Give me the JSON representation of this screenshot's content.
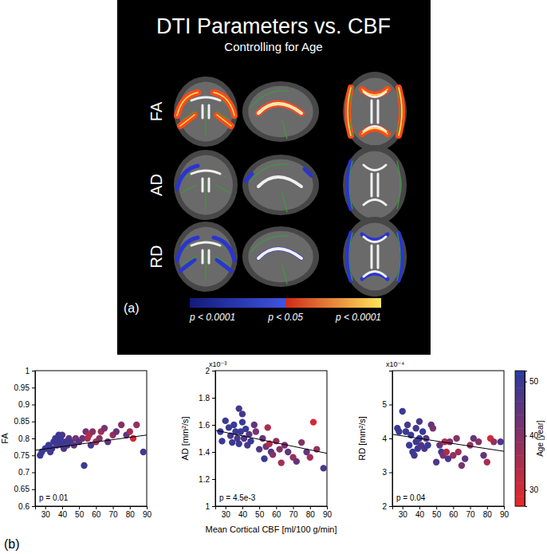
{
  "panel_a": {
    "title": "DTI Parameters vs. CBF",
    "subtitle": "Controlling for Age",
    "rows": [
      {
        "label": "FA",
        "color": "#ff4a1a"
      },
      {
        "label": "AD",
        "color": "#2a35d0"
      },
      {
        "label": "RD",
        "color": "#2a35d0"
      }
    ],
    "colorbar": {
      "labels": [
        "p < 0.0001",
        "p < 0.05",
        "p < 0.0001"
      ],
      "colors": [
        "#151a7a",
        "#3d55e0",
        "#d02a1a",
        "#ffe45a"
      ]
    },
    "label": "(a)"
  },
  "panel_b": {
    "label": "(b)"
  },
  "chart_data": [
    {
      "type": "scatter",
      "ylabel": "FA",
      "annotation": "p = 0.01",
      "x": [
        27,
        28,
        30,
        32,
        33,
        34,
        35,
        36,
        37,
        38,
        38,
        39,
        40,
        40,
        41,
        42,
        43,
        44,
        45,
        47,
        48,
        50,
        52,
        53,
        54,
        55,
        56,
        57,
        58,
        60,
        62,
        63,
        65,
        67,
        70,
        72,
        75,
        78,
        80,
        82,
        84,
        88
      ],
      "values": [
        0.75,
        0.76,
        0.77,
        0.78,
        0.76,
        0.77,
        0.79,
        0.8,
        0.78,
        0.81,
        0.79,
        0.8,
        0.81,
        0.78,
        0.77,
        0.79,
        0.78,
        0.8,
        0.79,
        0.78,
        0.8,
        0.79,
        0.8,
        0.72,
        0.82,
        0.8,
        0.81,
        0.78,
        0.82,
        0.79,
        0.8,
        0.82,
        0.83,
        0.79,
        0.81,
        0.82,
        0.84,
        0.81,
        0.82,
        0.8,
        0.84,
        0.76
      ],
      "age": [
        50,
        50,
        50,
        50,
        48,
        50,
        50,
        50,
        48,
        50,
        49,
        50,
        48,
        50,
        47,
        50,
        48,
        46,
        50,
        45,
        42,
        47,
        44,
        50,
        42,
        35,
        34,
        48,
        40,
        38,
        40,
        36,
        42,
        45,
        38,
        44,
        40,
        45,
        36,
        30,
        38,
        48
      ],
      "fit": {
        "x": [
          24,
          90
        ],
        "y": [
          0.765,
          0.81
        ]
      },
      "xlim": [
        24,
        90
      ],
      "ylim": [
        0.6,
        1
      ],
      "xticks": [
        30,
        40,
        50,
        60,
        70,
        80,
        90
      ],
      "yticks": [
        0.6,
        0.65,
        0.7,
        0.75,
        0.8,
        0.85,
        0.9,
        0.95,
        1
      ]
    },
    {
      "type": "scatter",
      "ylabel": "AD  [mm²/s]",
      "y_multiplier": "x10⁻³",
      "annotation": "p = 4.5e-3",
      "xlabel": "Mean Cortical CBF [ml/100 g/min]",
      "x": [
        27,
        28,
        30,
        32,
        33,
        34,
        35,
        36,
        37,
        38,
        38,
        39,
        40,
        40,
        41,
        42,
        43,
        44,
        45,
        47,
        48,
        50,
        52,
        53,
        54,
        55,
        56,
        57,
        58,
        60,
        62,
        63,
        65,
        67,
        70,
        72,
        75,
        78,
        80,
        82,
        84,
        88
      ],
      "values": [
        1.55,
        1.48,
        1.63,
        1.58,
        1.52,
        1.47,
        1.6,
        1.55,
        1.5,
        1.46,
        1.72,
        1.55,
        1.68,
        1.62,
        1.5,
        1.57,
        1.45,
        1.53,
        1.48,
        1.6,
        1.55,
        1.42,
        1.5,
        1.35,
        1.44,
        1.58,
        1.46,
        1.4,
        1.38,
        1.48,
        1.42,
        1.32,
        1.45,
        1.4,
        1.36,
        1.33,
        1.47,
        1.4,
        1.36,
        1.62,
        1.42,
        1.28
      ],
      "age": [
        50,
        50,
        50,
        50,
        48,
        50,
        50,
        50,
        48,
        50,
        49,
        50,
        48,
        50,
        47,
        50,
        48,
        46,
        50,
        45,
        42,
        47,
        44,
        50,
        42,
        35,
        34,
        48,
        40,
        38,
        40,
        36,
        42,
        45,
        38,
        44,
        40,
        45,
        36,
        30,
        38,
        48
      ],
      "fit": {
        "x": [
          24,
          90
        ],
        "y": [
          1.56,
          1.39
        ]
      },
      "xlim": [
        24,
        90
      ],
      "ylim": [
        1,
        2
      ],
      "xticks": [
        30,
        40,
        50,
        60,
        70,
        80,
        90
      ],
      "yticks": [
        1,
        1.2,
        1.4,
        1.6,
        1.8,
        2
      ]
    },
    {
      "type": "scatter",
      "ylabel": "RD  [mm²/s]",
      "y_multiplier": "x10⁻⁴",
      "annotation": "p = 0.04",
      "x": [
        27,
        28,
        30,
        32,
        33,
        34,
        35,
        36,
        37,
        38,
        38,
        39,
        40,
        40,
        41,
        42,
        43,
        44,
        45,
        47,
        48,
        50,
        52,
        53,
        54,
        55,
        56,
        57,
        58,
        60,
        62,
        63,
        65,
        67,
        70,
        72,
        75,
        78,
        80,
        82,
        84,
        88
      ],
      "values": [
        4.3,
        4.2,
        4.8,
        4.2,
        4.4,
        3.8,
        4.1,
        3.6,
        3.5,
        3.9,
        4.3,
        3.7,
        4.5,
        4.0,
        3.8,
        4.2,
        3.7,
        4.0,
        3.8,
        4.4,
        4.3,
        3.3,
        3.8,
        3.6,
        3.5,
        3.9,
        3.6,
        3.4,
        3.9,
        3.5,
        4.0,
        3.6,
        3.2,
        3.4,
        3.8,
        4.0,
        3.9,
        3.5,
        3.3,
        4.0,
        3.9,
        3.9
      ],
      "age": [
        50,
        50,
        50,
        50,
        48,
        50,
        50,
        50,
        48,
        50,
        49,
        50,
        48,
        50,
        47,
        50,
        48,
        46,
        50,
        45,
        42,
        47,
        44,
        50,
        42,
        35,
        34,
        48,
        40,
        38,
        40,
        36,
        42,
        45,
        38,
        44,
        40,
        45,
        36,
        30,
        38,
        48
      ],
      "fit": {
        "x": [
          24,
          90
        ],
        "y": [
          4.12,
          3.62
        ]
      },
      "xlim": [
        24,
        90
      ],
      "ylim": [
        2,
        6
      ],
      "xticks": [
        30,
        40,
        50,
        60,
        70,
        80,
        90
      ],
      "yticks": [
        2,
        3,
        4,
        5
      ],
      "colorbar": {
        "label": "Age [year]",
        "range": [
          27,
          52
        ],
        "ticks": [
          30,
          40,
          50
        ],
        "colors": [
          "#e8282a",
          "#2b3a9e"
        ]
      }
    }
  ]
}
